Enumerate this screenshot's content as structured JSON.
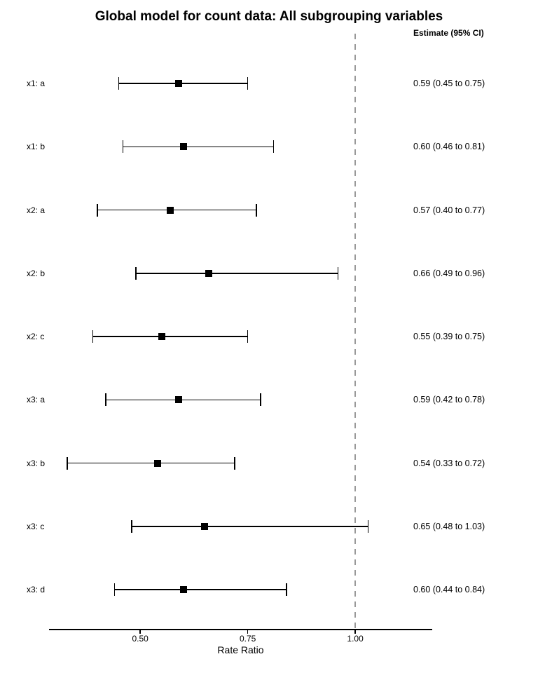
{
  "chart_data": {
    "type": "forest",
    "title": "Global model for count data: All subgrouping variables",
    "column_header": "Estimate (95% CI)",
    "xlabel": "Rate Ratio",
    "x_scale": "linear",
    "xlim": [
      0.288,
      1.179
    ],
    "x_ticks": [
      0.5,
      0.75,
      1.0
    ],
    "x_tick_labels": [
      "0.50",
      "0.75",
      "1.00"
    ],
    "reference_line": 1.0,
    "grid": false,
    "legend": "none",
    "colors": {
      "marker": "#000000",
      "ci_line": "#000000",
      "reference_line": "#999999",
      "text": "#000000",
      "background": "#ffffff"
    },
    "rows": [
      {
        "label": "x1: a",
        "estimate": 0.59,
        "ci_low": 0.45,
        "ci_high": 0.75,
        "estimate_text": "0.59 (0.45 to 0.75)"
      },
      {
        "label": "x1: b",
        "estimate": 0.6,
        "ci_low": 0.46,
        "ci_high": 0.81,
        "estimate_text": "0.60 (0.46 to 0.81)"
      },
      {
        "label": "x2: a",
        "estimate": 0.57,
        "ci_low": 0.4,
        "ci_high": 0.77,
        "estimate_text": "0.57 (0.40 to 0.77)"
      },
      {
        "label": "x2: b",
        "estimate": 0.66,
        "ci_low": 0.49,
        "ci_high": 0.96,
        "estimate_text": "0.66 (0.49 to 0.96)"
      },
      {
        "label": "x2: c",
        "estimate": 0.55,
        "ci_low": 0.39,
        "ci_high": 0.75,
        "estimate_text": "0.55 (0.39 to 0.75)"
      },
      {
        "label": "x3: a",
        "estimate": 0.59,
        "ci_low": 0.42,
        "ci_high": 0.78,
        "estimate_text": "0.59 (0.42 to 0.78)"
      },
      {
        "label": "x3: b",
        "estimate": 0.54,
        "ci_low": 0.33,
        "ci_high": 0.72,
        "estimate_text": "0.54 (0.33 to 0.72)"
      },
      {
        "label": "x3: c",
        "estimate": 0.65,
        "ci_low": 0.48,
        "ci_high": 1.03,
        "estimate_text": "0.65 (0.48 to 1.03)"
      },
      {
        "label": "x3: d",
        "estimate": 0.6,
        "ci_low": 0.44,
        "ci_high": 0.84,
        "estimate_text": "0.60 (0.44 to 0.84)"
      }
    ]
  }
}
